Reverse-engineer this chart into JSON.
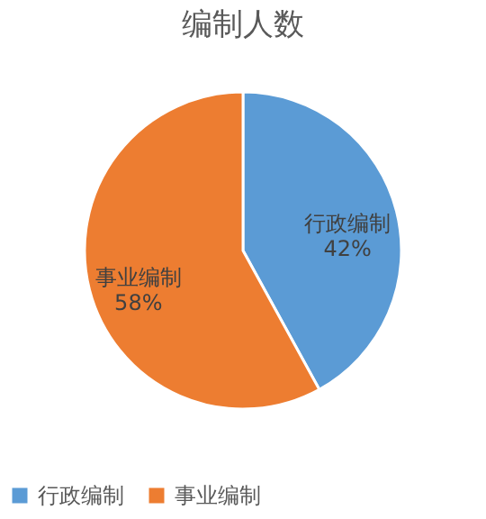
{
  "chart_data": {
    "type": "pie",
    "title": "编制人数",
    "categories": [
      "行政编制",
      "事业编制"
    ],
    "values": [
      42,
      58
    ],
    "colors": [
      "#5b9bd5",
      "#ed7d31"
    ],
    "value_labels": [
      "42%",
      "58%"
    ],
    "legend": "bottom"
  }
}
